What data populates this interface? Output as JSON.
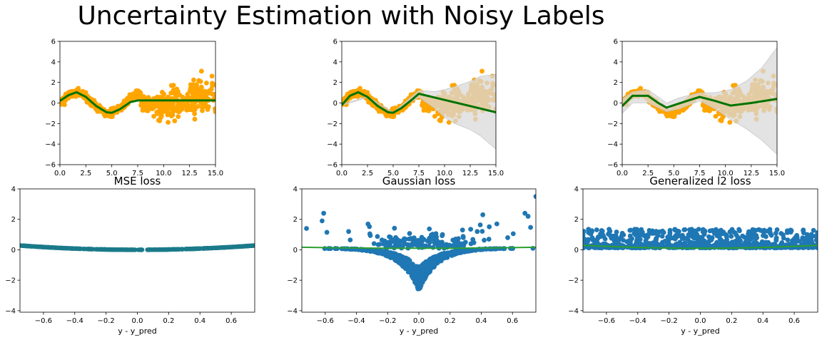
{
  "figure": {
    "title": "Uncertainty Estimation with Noisy Labels"
  },
  "colors": {
    "scatter_orange": "#ffa500",
    "fit_green": "#007300",
    "band_grey": "#d9d9d9",
    "scatter_blue": "#1f77b4",
    "teal": "#1a7a8a",
    "curve_green": "#2ca02c"
  },
  "chart_data": [
    {
      "type": "scatter",
      "panel": "top-left",
      "title": "",
      "xlabel": "",
      "ylabel": "",
      "xlim": [
        0,
        15
      ],
      "ylim": [
        -6,
        6
      ],
      "xticks": [
        "0.0",
        "2.5",
        "5.0",
        "7.5",
        "10.0",
        "12.5",
        "15.0"
      ],
      "yticks": [
        "−6",
        "−4",
        "−2",
        "0",
        "2",
        "4",
        "6"
      ],
      "scatter_description": "noisy sine-like data: low noise for x<7.5, high noise around 10 and 13-15",
      "fit_line": {
        "x": [
          0,
          0.8,
          1.6,
          2.5,
          3.5,
          4.5,
          5.0,
          5.8,
          6.8,
          7.5,
          10,
          12.5,
          15
        ],
        "y": [
          0.2,
          0.75,
          1.05,
          0.6,
          -0.3,
          -0.9,
          -0.95,
          -0.6,
          0.1,
          0.25,
          0.25,
          0.25,
          0.25
        ]
      },
      "band": null
    },
    {
      "type": "scatter",
      "panel": "top-middle",
      "title": "",
      "xlabel": "",
      "ylabel": "",
      "xlim": [
        0,
        15
      ],
      "ylim": [
        -6,
        6
      ],
      "xticks": [
        "0.0",
        "2.5",
        "5.0",
        "7.5",
        "10.0",
        "12.5",
        "15.0"
      ],
      "yticks": [
        "−6",
        "−4",
        "−2",
        "0",
        "2",
        "4",
        "6"
      ],
      "fit_line": {
        "x": [
          0,
          0.8,
          1.6,
          2.5,
          3.5,
          4.5,
          5.0,
          5.8,
          6.8,
          7.5,
          10,
          12.5,
          15
        ],
        "y": [
          -0.2,
          0.7,
          1.05,
          0.6,
          -0.3,
          -0.9,
          -0.95,
          -0.5,
          0.3,
          0.9,
          0.3,
          -0.3,
          -0.9
        ]
      },
      "band": {
        "x": [
          0,
          2.5,
          5.0,
          7.5,
          9,
          10,
          11,
          12.5,
          13.5,
          15
        ],
        "lower": [
          -0.25,
          0.55,
          -1.0,
          0.55,
          -0.5,
          -1.4,
          -2.0,
          -2.6,
          -3.2,
          -4.5
        ],
        "upper": [
          -0.15,
          0.65,
          -0.9,
          1.25,
          1.1,
          1.3,
          1.6,
          2.1,
          2.6,
          2.8
        ]
      }
    },
    {
      "type": "scatter",
      "panel": "top-right",
      "title": "",
      "xlabel": "",
      "ylabel": "",
      "xlim": [
        0,
        15
      ],
      "ylim": [
        -6,
        6
      ],
      "xticks": [
        "0.0",
        "2.5",
        "5.0",
        "7.5",
        "10.0",
        "12.5",
        "15.0"
      ],
      "yticks": [
        "−6",
        "−4",
        "−2",
        "0",
        "2",
        "4",
        "6"
      ],
      "fit_line": {
        "x": [
          0,
          1,
          2.5,
          3.5,
          4.3,
          5.5,
          7.5,
          9,
          10.5,
          12.5,
          15
        ],
        "y": [
          -0.3,
          0.7,
          0.7,
          0.0,
          -0.45,
          -0.05,
          0.6,
          0.2,
          -0.25,
          0.0,
          0.4
        ]
      },
      "band": {
        "x": [
          0,
          1,
          2.5,
          4.3,
          5.5,
          7.5,
          9,
          10.5,
          12,
          13.5,
          15
        ],
        "lower": [
          -1.0,
          0.0,
          0.0,
          -0.85,
          -0.6,
          0.2,
          -0.6,
          -1.6,
          -2.5,
          -3.6,
          -5.0
        ],
        "upper": [
          0.4,
          1.1,
          1.3,
          0.0,
          0.5,
          1.0,
          1.0,
          1.3,
          2.1,
          3.4,
          5.4
        ]
      }
    },
    {
      "type": "scatter",
      "panel": "bottom-left",
      "title": "MSE loss",
      "xlabel": "y - y_pred",
      "ylabel": "",
      "xlim": [
        -0.75,
        0.75
      ],
      "ylim": [
        -4.1,
        4
      ],
      "xticks": [
        -0.6,
        -0.4,
        -0.2,
        0.0,
        0.2,
        0.4,
        0.6
      ],
      "xtick_labels": [
        "−0.6",
        "−0.4",
        "−0.2",
        "0.0",
        "0.2",
        "0.4",
        "0.6"
      ],
      "yticks": [
        -4,
        -2,
        0,
        2,
        4
      ],
      "ytick_labels": [
        "−4",
        "−2",
        "0",
        "2",
        "4"
      ],
      "curve": "parabola y = 0.5*x^2"
    },
    {
      "type": "scatter",
      "panel": "bottom-middle",
      "title": "Gaussian loss",
      "xlabel": "y - y_pred",
      "ylabel": "",
      "xlim": [
        -0.75,
        0.75
      ],
      "ylim": [
        -4.1,
        4
      ],
      "xticks": [
        -0.6,
        -0.4,
        -0.2,
        0.0,
        0.2,
        0.4,
        0.6
      ],
      "xtick_labels": [
        "−0.6",
        "−0.4",
        "−0.2",
        "0.0",
        "0.2",
        "0.4",
        "0.6"
      ],
      "yticks": [
        -4,
        -2,
        0,
        2,
        4
      ],
      "ytick_labels": [
        "−4",
        "−2",
        "0",
        "2",
        "4"
      ],
      "curve": "V-shaped spread reaching -2.8 at x=0, flat green line near 0.1"
    },
    {
      "type": "scatter",
      "panel": "bottom-right",
      "title": "Generalized l2 loss",
      "xlabel": "y - y_pred",
      "ylabel": "",
      "xlim": [
        -0.75,
        0.75
      ],
      "ylim": [
        -4.1,
        4
      ],
      "xticks": [
        -0.6,
        -0.4,
        -0.2,
        0.0,
        0.2,
        0.4,
        0.6
      ],
      "xtick_labels": [
        "−0.6",
        "−0.4",
        "−0.2",
        "0.0",
        "0.2",
        "0.4",
        "0.6"
      ],
      "yticks": [
        -4,
        -2,
        0,
        2,
        4
      ],
      "ytick_labels": [
        "−4",
        "−2",
        "0",
        "2",
        "4"
      ],
      "curve": "points between 0.1 and 1.4, green line near 0.1 rising to 0.3"
    }
  ]
}
